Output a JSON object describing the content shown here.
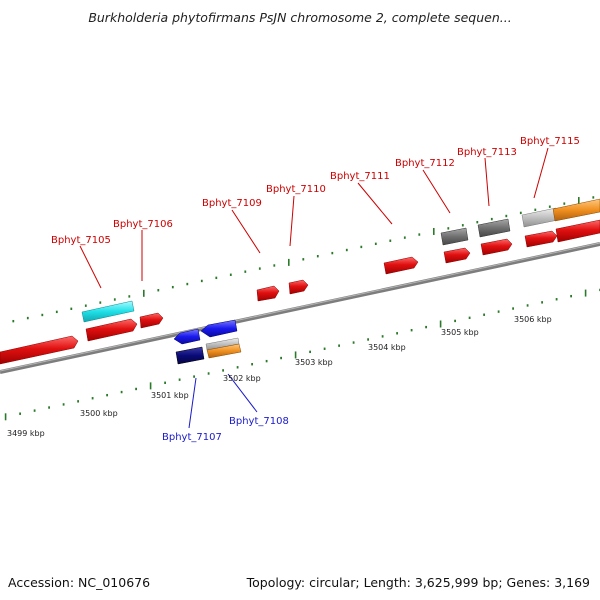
{
  "title": "Burkholderia phytofirmans PsJN chromosome 2, complete sequen...",
  "footer": {
    "accession": "Accession: NC_010676",
    "topology": "Topology: circular; Length: 3,625,999 bp; Genes: 3,169"
  },
  "colors": {
    "backbone": "#8c8c8c",
    "tick": "#2a7a2a",
    "red_gene": "#e01010",
    "cyan_gene": "#20e0e8",
    "blue_gene": "#1a1aee",
    "navy_gene": "#0a0a78",
    "gray_gene": "#707070",
    "lightgray_gene": "#c0c0c0",
    "orange_gene": "#f09020"
  },
  "scale": {
    "unit": "kbp",
    "labels": [
      "3499 kbp",
      "3500 kbp",
      "3501 kbp",
      "3502 kbp",
      "3503 kbp",
      "3504 kbp",
      "3505 kbp",
      "3506 kbp"
    ]
  },
  "gene_labels": {
    "top": [
      "Bphyt_7105",
      "Bphyt_7106",
      "Bphyt_7109",
      "Bphyt_7110",
      "Bphyt_7111",
      "Bphyt_7112",
      "Bphyt_7113",
      "Bphyt_7115"
    ],
    "bottom": [
      "Bphyt_7107",
      "Bphyt_7108"
    ]
  }
}
